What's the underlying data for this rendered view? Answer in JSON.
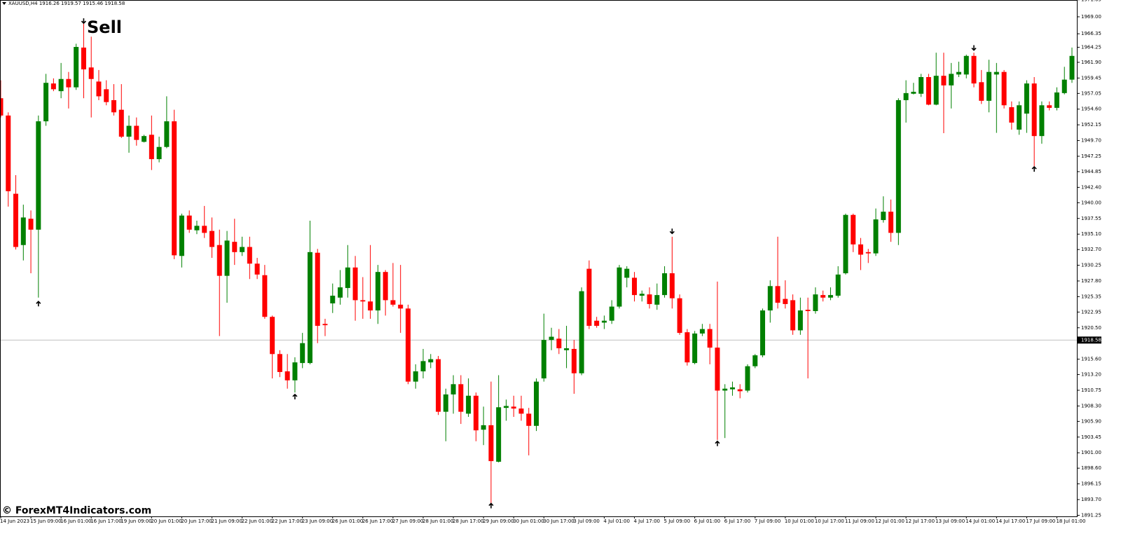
{
  "chart_data": {
    "type": "candlestick",
    "title": "XAUUSD,H4  1916.26 1919.57 1915.46 1918.58",
    "annotation": "Sell",
    "watermark": "© ForexMT4Indicators.com",
    "up_color": "#008000",
    "down_color": "#ff0000",
    "arrow_color": "#000000",
    "current_price": 1918.58,
    "ylim": [
      1891.08,
      1971.62
    ],
    "yticks": [
      1971.65,
      {
        "value": 1969.0,
        "label": "1969.00"
      },
      1966.35,
      1964.25,
      {
        "value": 1961.9,
        "label": "1961.90"
      },
      1959.45,
      1957.05,
      {
        "value": 1954.6,
        "label": "1954.60"
      },
      1952.15,
      {
        "value": 1949.7,
        "label": "1949.70"
      },
      1947.25,
      1944.85,
      {
        "value": 1942.4,
        "label": "1942.40"
      },
      {
        "value": 1940.0,
        "label": "1940.00"
      },
      1937.55,
      {
        "value": 1935.1,
        "label": "1935.10"
      },
      {
        "value": 1932.7,
        "label": "1932.70"
      },
      1930.25,
      {
        "value": 1927.8,
        "label": "1927.80"
      },
      1925.35,
      1922.95,
      {
        "value": 1920.5,
        "label": "1920.50"
      },
      {
        "value": 1915.6,
        "label": "1915.60"
      },
      {
        "value": 1913.2,
        "label": "1913.20"
      },
      1910.75,
      {
        "value": 1908.3,
        "label": "1908.30"
      },
      {
        "value": 1905.9,
        "label": "1905.90"
      },
      1903.45,
      {
        "value": 1901.0,
        "label": "1901.00"
      },
      {
        "value": 1898.6,
        "label": "1898.60"
      },
      1896.15,
      {
        "value": 1893.7,
        "label": "1893.70"
      },
      1891.25
    ],
    "categories": [
      "14 Jun 2023",
      null,
      null,
      null,
      "15 Jun 09:00",
      null,
      null,
      null,
      "16 Jun 01:00",
      null,
      null,
      null,
      "16 Jun 17:00",
      null,
      null,
      null,
      "19 Jun 09:00",
      null,
      null,
      null,
      "20 Jun 01:00",
      null,
      null,
      null,
      "20 Jun 17:00",
      null,
      null,
      null,
      "21 Jun 09:00",
      null,
      null,
      null,
      "22 Jun 01:00",
      null,
      null,
      null,
      "22 Jun 17:00",
      null,
      null,
      null,
      "23 Jun 09:00",
      null,
      null,
      null,
      "26 Jun 01:00",
      null,
      null,
      null,
      "26 Jun 17:00",
      null,
      null,
      null,
      "27 Jun 09:00",
      null,
      null,
      null,
      "28 Jun 01:00",
      null,
      null,
      null,
      "28 Jun 17:00",
      null,
      null,
      null,
      "29 Jun 09:00",
      null,
      null,
      null,
      "30 Jun 01:00",
      null,
      null,
      null,
      "30 Jun 17:00",
      null,
      null,
      null,
      "3 Jul 09:00",
      null,
      null,
      null,
      "4 Jul 01:00",
      null,
      null,
      null,
      "4 Jul 17:00",
      null,
      null,
      null,
      "5 Jul 09:00",
      null,
      null,
      null,
      "6 Jul 01:00",
      null,
      null,
      null,
      "6 Jul 17:00",
      null,
      null,
      null,
      "7 Jul 09:00",
      null,
      null,
      null,
      "10 Jul 01:00",
      null,
      null,
      null,
      "10 Jul 17:00",
      null,
      null,
      null,
      "11 Jul 09:00",
      null,
      null,
      null,
      "12 Jul 01:00",
      null,
      null,
      null,
      "12 Jul 17:00",
      null,
      null,
      null,
      "13 Jul 09:00",
      null,
      null,
      null,
      "14 Jul 01:00",
      null,
      null,
      null,
      "14 Jul 17:00",
      null,
      null,
      null,
      "17 Jul 09:00",
      null,
      null,
      null,
      "18 Jul 01:00",
      null,
      null
    ],
    "open": [
      1956.3,
      1953.6,
      1941.4,
      1933.4,
      1937.5,
      1935.8,
      1952.7,
      1958.6,
      1957.4,
      1959.3,
      1958.0,
      1964.2,
      1961.1,
      1958.9,
      1957.7,
      1956.0,
      1954.5,
      1950.3,
      1952.0,
      1949.5,
      1950.6,
      1946.8,
      1948.7,
      1952.7,
      1931.7,
      1938.0,
      1935.7,
      1936.4,
      1935.6,
      1933.4,
      1928.6,
      1933.9,
      1932.3,
      1933.1,
      1930.5,
      1928.7,
      1922.2,
      1916.4,
      1913.7,
      1912.3,
      1915.0,
      1915.0,
      1932.2,
      1921.1,
      1924.3,
      1925.2,
      1926.7,
      1929.9,
      1924.8,
      1924.6,
      1923.2,
      1929.2,
      1924.8,
      1924.1,
      1923.5,
      1912.1,
      1913.7,
      1915.1,
      1915.6,
      1907.4,
      1910.1,
      1911.7,
      1907.1,
      1909.9,
      1904.6,
      1905.3,
      1899.6,
      1908.0,
      1908.2,
      1907.9,
      1907.1,
      1905.2,
      1912.6,
      1918.6,
      1918.8,
      1917.0,
      1917.2,
      1913.4,
      1929.7,
      1921.6,
      1921.3,
      1921.6,
      1923.8,
      1928.3,
      1928.3,
      1925.5,
      1925.7,
      1924.1,
      1925.6,
      1929.0,
      1925.1,
      1919.8,
      1915.0,
      1919.6,
      1920.3,
      1917.4,
      1910.7,
      1910.9,
      1910.9,
      1910.7,
      1914.5,
      1916.2,
      1923.2,
      1927.0,
      1925.0,
      1924.8,
      1920.1,
      1923.3,
      1923.1,
      1925.6,
      1925.2,
      1925.5,
      1929.0,
      1938.1,
      1933.5,
      1932.3,
      1932.1,
      1937.3,
      1938.6,
      1935.3,
      1956.0,
      1957.0,
      1957.0,
      1959.6,
      1955.3,
      1959.8,
      1958.3,
      1960.0,
      1960.0,
      1962.9,
      1958.8,
      1955.9,
      1960.0,
      1960.4,
      1954.9,
      1951.4,
      1953.9,
      1958.6,
      1950.4,
      1955.2,
      1954.8,
      1957.1,
      1959.2
    ],
    "high": [
      1959.1,
      1954.1,
      1944.3,
      1939.7,
      1938.8,
      1953.6,
      1960.1,
      1959.4,
      1961.8,
      1960.4,
      1964.8,
      1968.0,
      1965.9,
      1960.7,
      1959.1,
      1958.5,
      1958.5,
      1953.6,
      1953.3,
      1950.6,
      1953.6,
      1950.3,
      1956.6,
      1954.5,
      1938.3,
      1938.8,
      1937.2,
      1939.5,
      1937.7,
      1935.8,
      1935.6,
      1937.5,
      1934.7,
      1934.7,
      1931.4,
      1930.3,
      1922.4,
      1917.0,
      1916.4,
      1915.9,
      1919.7,
      1937.2,
      1932.8,
      1921.9,
      1927.4,
      1929.5,
      1933.4,
      1931.7,
      1928.4,
      1933.4,
      1930.3,
      1929.5,
      1930.6,
      1930.3,
      1924.1,
      1914.8,
      1917.2,
      1916.4,
      1916.1,
      1911.0,
      1913.1,
      1913.1,
      1912.6,
      1910.4,
      1908.2,
      1912.1,
      1913.1,
      1909.3,
      1909.9,
      1909.9,
      1908.0,
      1912.6,
      1922.7,
      1920.5,
      1920.3,
      1920.8,
      1918.6,
      1926.8,
      1931.0,
      1922.2,
      1922.4,
      1924.8,
      1930.3,
      1930.1,
      1929.2,
      1926.3,
      1926.8,
      1927.4,
      1930.1,
      1934.7,
      1925.7,
      1920.3,
      1920.0,
      1921.1,
      1921.1,
      1927.7,
      1911.7,
      1912.1,
      1911.7,
      1914.8,
      1916.4,
      1923.5,
      1927.9,
      1934.7,
      1927.9,
      1925.7,
      1925.2,
      1925.2,
      1926.8,
      1926.3,
      1926.8,
      1930.1,
      1938.3,
      1938.3,
      1934.5,
      1932.8,
      1939.1,
      1941.0,
      1940.5,
      1956.3,
      1959.1,
      1958.7,
      1960.1,
      1960.1,
      1963.4,
      1963.4,
      1961.8,
      1962.0,
      1963.1,
      1963.4,
      1960.7,
      1962.3,
      1961.8,
      1960.7,
      1955.8,
      1955.8,
      1959.1,
      1959.6,
      1955.8,
      1955.8,
      1958.0,
      1961.2,
      1964.2
    ],
    "low": [
      1953.3,
      1939.4,
      1932.7,
      1931.0,
      1929.0,
      1925.2,
      1952.0,
      1957.4,
      1956.3,
      1954.7,
      1957.6,
      1956.3,
      1953.3,
      1956.0,
      1955.2,
      1953.6,
      1950.1,
      1947.8,
      1948.9,
      1949.4,
      1945.1,
      1946.3,
      1948.5,
      1931.2,
      1929.9,
      1935.3,
      1935.1,
      1934.5,
      1931.4,
      1919.2,
      1924.4,
      1930.3,
      1931.7,
      1928.1,
      1928.1,
      1921.9,
      1912.6,
      1912.8,
      1911.0,
      1910.4,
      1914.2,
      1914.8,
      1918.1,
      1919.2,
      1922.8,
      1924.1,
      1925.2,
      1921.6,
      1921.9,
      1921.9,
      1921.1,
      1922.4,
      1923.8,
      1919.7,
      1911.7,
      1911.0,
      1912.6,
      1914.2,
      1906.9,
      1902.8,
      1907.1,
      1905.5,
      1906.6,
      1902.8,
      1902.2,
      1893.1,
      1899.5,
      1906.0,
      1906.6,
      1906.0,
      1900.6,
      1904.4,
      1912.1,
      1917.0,
      1916.4,
      1914.2,
      1910.2,
      1913.1,
      1920.3,
      1920.5,
      1920.3,
      1921.1,
      1923.5,
      1926.8,
      1924.6,
      1924.6,
      1923.5,
      1923.3,
      1925.2,
      1923.5,
      1919.4,
      1914.6,
      1914.8,
      1919.2,
      1914.8,
      1903.0,
      1903.3,
      1909.9,
      1909.5,
      1910.4,
      1914.2,
      1915.9,
      1921.3,
      1923.5,
      1923.5,
      1919.4,
      1919.4,
      1912.6,
      1922.7,
      1924.6,
      1924.8,
      1925.2,
      1928.8,
      1932.3,
      1929.5,
      1930.6,
      1931.7,
      1936.9,
      1933.9,
      1933.4,
      1952.5,
      1956.9,
      1956.5,
      1955.2,
      1955.2,
      1950.85,
      1954.7,
      1959.6,
      1959.4,
      1958.0,
      1955.4,
      1954.1,
      1950.9,
      1954.7,
      1951.4,
      1950.6,
      1950.9,
      1945.6,
      1949.2,
      1954.4,
      1954.4,
      1956.9,
      1958.7
    ],
    "close": [
      1953.6,
      1941.8,
      1933.1,
      1937.7,
      1935.8,
      1952.7,
      1958.7,
      1957.7,
      1959.3,
      1958.0,
      1964.3,
      1960.8,
      1959.3,
      1956.6,
      1955.7,
      1954.1,
      1950.3,
      1952.0,
      1949.8,
      1950.4,
      1946.8,
      1948.7,
      1952.7,
      1931.8,
      1938.0,
      1935.8,
      1936.4,
      1935.3,
      1933.1,
      1928.6,
      1934.1,
      1932.3,
      1933.1,
      1930.5,
      1928.8,
      1922.2,
      1916.4,
      1913.6,
      1912.3,
      1915.1,
      1918.1,
      1932.3,
      1920.8,
      1920.9,
      1925.5,
      1926.8,
      1929.9,
      1924.8,
      1924.6,
      1923.2,
      1929.2,
      1924.8,
      1924.1,
      1923.5,
      1912.1,
      1913.7,
      1915.3,
      1915.6,
      1907.4,
      1910.1,
      1911.7,
      1907.4,
      1909.9,
      1904.5,
      1905.3,
      1899.7,
      1908.1,
      1908.3,
      1907.9,
      1907.1,
      1905.2,
      1912.1,
      1918.6,
      1919.1,
      1917.3,
      1917.3,
      1913.4,
      1926.2,
      1920.8,
      1920.8,
      1921.6,
      1923.8,
      1929.9,
      1929.7,
      1925.6,
      1925.8,
      1924.2,
      1925.6,
      1929.0,
      1925.1,
      1919.7,
      1915.1,
      1919.6,
      1920.3,
      1917.4,
      1910.7,
      1911.0,
      1911.2,
      1910.6,
      1914.5,
      1916.2,
      1923.2,
      1927.0,
      1924.4,
      1924.2,
      1920.1,
      1923.2,
      1923.1,
      1925.7,
      1925.2,
      1925.6,
      1928.8,
      1938.1,
      1933.5,
      1931.9,
      1932.1,
      1937.4,
      1938.6,
      1935.3,
      1956.0,
      1957.1,
      1957.3,
      1959.6,
      1955.3,
      1959.8,
      1958.3,
      1960.1,
      1960.4,
      1962.9,
      1958.6,
      1955.9,
      1960.4,
      1960.4,
      1955.2,
      1952.5,
      1955.2,
      1958.6,
      1950.4,
      1955.2,
      1954.8,
      1957.2,
      1959.2,
      1962.9
    ],
    "buy_signals": [
      null,
      null,
      null,
      null,
      null,
      1924.6,
      null,
      null,
      null,
      null,
      null,
      null,
      null,
      null,
      null,
      null,
      null,
      null,
      null,
      null,
      null,
      null,
      null,
      null,
      null,
      null,
      null,
      null,
      null,
      null,
      null,
      null,
      null,
      null,
      null,
      null,
      null,
      null,
      null,
      1910.1,
      null,
      null,
      null,
      null,
      null,
      null,
      null,
      null,
      null,
      null,
      null,
      null,
      null,
      null,
      null,
      null,
      null,
      null,
      null,
      null,
      null,
      null,
      null,
      null,
      null,
      1893.1,
      null,
      null,
      null,
      null,
      null,
      null,
      null,
      null,
      null,
      null,
      null,
      null,
      null,
      null,
      null,
      null,
      null,
      null,
      null,
      null,
      null,
      null,
      null,
      null,
      null,
      null,
      null,
      null,
      null,
      1902.8,
      null,
      null,
      null,
      null,
      null,
      null,
      null,
      null,
      null,
      null,
      null,
      null,
      null,
      null,
      null,
      null,
      null,
      null,
      null,
      null,
      null,
      null,
      null,
      null,
      null,
      null,
      null,
      null,
      null,
      null,
      null,
      null,
      null,
      null,
      null,
      null,
      null,
      null,
      null,
      null,
      null,
      1945.6,
      null,
      null,
      null,
      null,
      null
    ],
    "sell_signals": [
      null,
      null,
      null,
      null,
      null,
      null,
      null,
      null,
      null,
      null,
      null,
      1968.0,
      null,
      null,
      null,
      null,
      null,
      null,
      null,
      null,
      null,
      null,
      null,
      null,
      null,
      null,
      null,
      null,
      null,
      null,
      null,
      null,
      null,
      null,
      null,
      null,
      null,
      null,
      null,
      null,
      null,
      null,
      null,
      null,
      null,
      null,
      null,
      null,
      null,
      null,
      null,
      null,
      null,
      null,
      null,
      null,
      null,
      null,
      null,
      null,
      null,
      null,
      null,
      null,
      null,
      null,
      null,
      null,
      null,
      null,
      null,
      null,
      null,
      null,
      null,
      null,
      null,
      null,
      null,
      null,
      null,
      null,
      null,
      null,
      null,
      null,
      null,
      null,
      null,
      1935.2,
      null,
      null,
      null,
      null,
      null,
      null,
      null,
      null,
      null,
      null,
      null,
      null,
      null,
      null,
      null,
      null,
      null,
      null,
      null,
      null,
      null,
      null,
      null,
      null,
      null,
      null,
      null,
      null,
      null,
      null,
      null,
      null,
      null,
      null,
      null,
      null,
      null,
      null,
      null,
      1963.8,
      null,
      null,
      null,
      null,
      null,
      null,
      null,
      null,
      null,
      null,
      null,
      null,
      null
    ]
  }
}
